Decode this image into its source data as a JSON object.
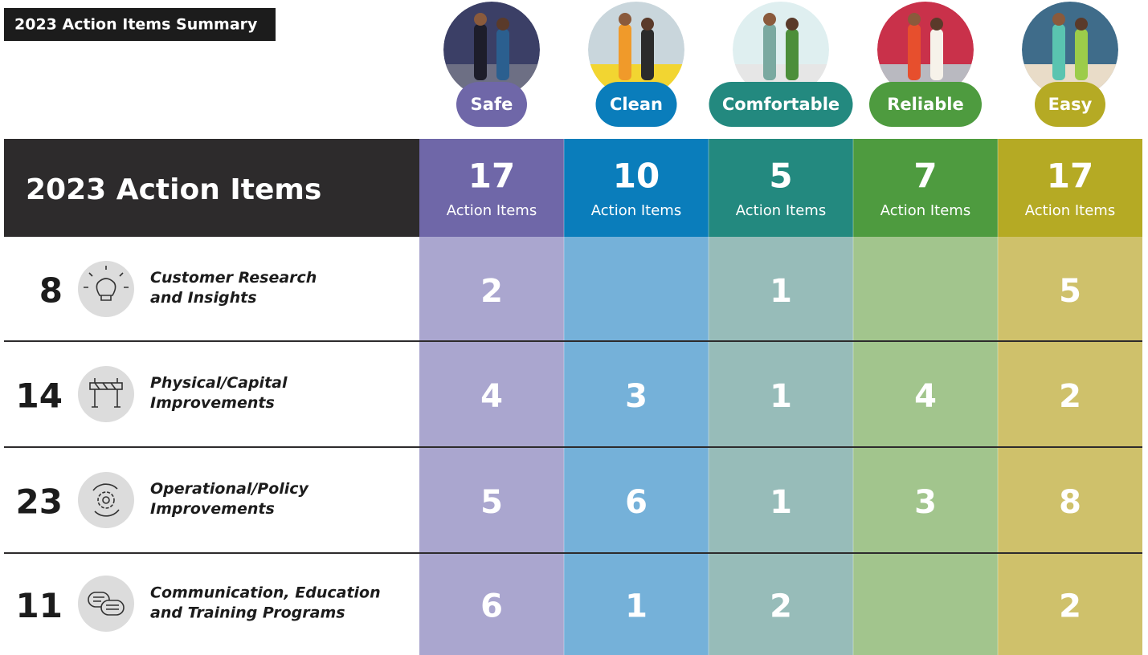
{
  "header": {
    "title": "2023 Action Items Summary"
  },
  "table": {
    "title": "2023 Action Items",
    "columns": [
      {
        "name": "Safe",
        "total": 17,
        "unit": "Action Items",
        "color": "#6f67a8",
        "light_color": "#aaa6cf"
      },
      {
        "name": "Clean",
        "total": 10,
        "unit": "Action Items",
        "color": "#0a7dbb",
        "light_color": "#75b1d9"
      },
      {
        "name": "Comfortable",
        "total": 5,
        "unit": "Action Items",
        "color": "#23897f",
        "light_color": "#97bcb9"
      },
      {
        "name": "Reliable",
        "total": 7,
        "unit": "Action Items",
        "color": "#4e9b3f",
        "light_color": "#a2c58d"
      },
      {
        "name": "Easy",
        "total": 17,
        "unit": "Action Items",
        "color": "#b5aa24",
        "light_color": "#cfc16b"
      }
    ],
    "rows": [
      {
        "total": 8,
        "label": [
          "Customer Research",
          "and Insights"
        ],
        "cells": [
          2,
          null,
          1,
          null,
          5
        ]
      },
      {
        "total": 14,
        "label": [
          "Physical/Capital",
          "Improvements"
        ],
        "cells": [
          4,
          3,
          1,
          4,
          2
        ]
      },
      {
        "total": 23,
        "label": [
          "Operational/Policy",
          "Improvements"
        ],
        "cells": [
          5,
          6,
          1,
          3,
          8
        ]
      },
      {
        "total": 11,
        "label": [
          "Communication, Education",
          "and Training Programs"
        ],
        "cells": [
          6,
          1,
          2,
          null,
          2
        ]
      }
    ]
  }
}
